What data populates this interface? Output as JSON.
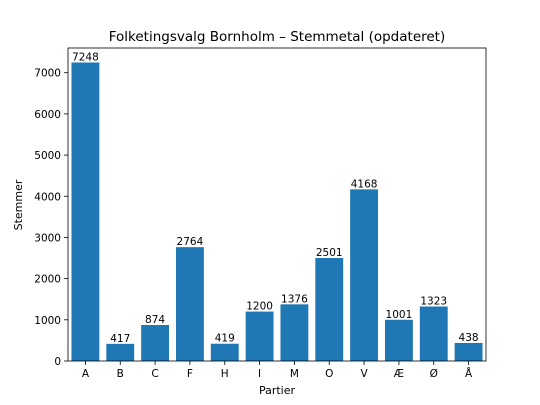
{
  "chart_data": {
    "type": "bar",
    "title": "Folketingsvalg Bornholm – Stemmetal (opdateret)",
    "xlabel": "Partier",
    "ylabel": "Stemmer",
    "categories": [
      "A",
      "B",
      "C",
      "F",
      "H",
      "I",
      "M",
      "O",
      "V",
      "Æ",
      "Ø",
      "Å"
    ],
    "values": [
      7248,
      417,
      874,
      2764,
      419,
      1200,
      1376,
      2501,
      4168,
      1001,
      1323,
      438
    ],
    "ylim": [
      0,
      7600
    ],
    "yticks": [
      0,
      1000,
      2000,
      3000,
      4000,
      5000,
      6000,
      7000
    ],
    "bar_color": "#1f77b4",
    "grid": false,
    "data_labels": true
  }
}
